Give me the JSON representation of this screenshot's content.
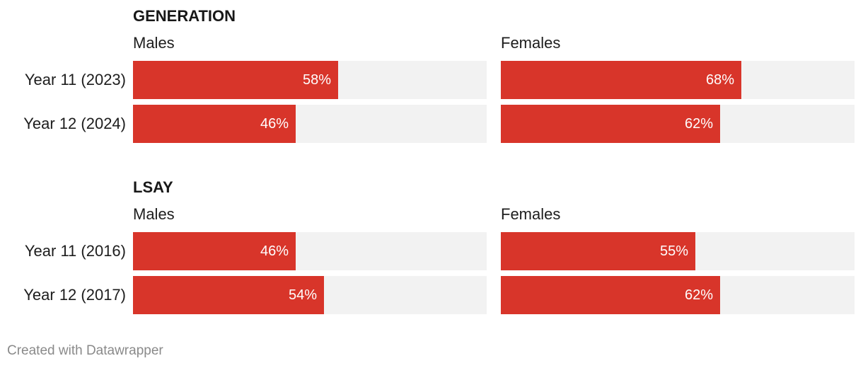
{
  "chart_data": {
    "type": "bar",
    "orientation": "horizontal",
    "xlim": [
      0,
      100
    ],
    "groups": [
      {
        "title": "GENERATION",
        "categories": [
          "Year 11 (2023)",
          "Year 12 (2024)"
        ],
        "series": [
          {
            "name": "Males",
            "values": [
              58,
              46
            ]
          },
          {
            "name": "Females",
            "values": [
              68,
              62
            ]
          }
        ]
      },
      {
        "title": "LSAY",
        "categories": [
          "Year 11 (2016)",
          "Year 12 (2017)"
        ],
        "series": [
          {
            "name": "Males",
            "values": [
              46,
              54
            ]
          },
          {
            "name": "Females",
            "values": [
              55,
              62
            ]
          }
        ]
      }
    ],
    "value_suffix": "%",
    "bar_color": "#d8352a",
    "track_color": "#f2f2f2"
  },
  "footer": "Created with Datawrapper"
}
